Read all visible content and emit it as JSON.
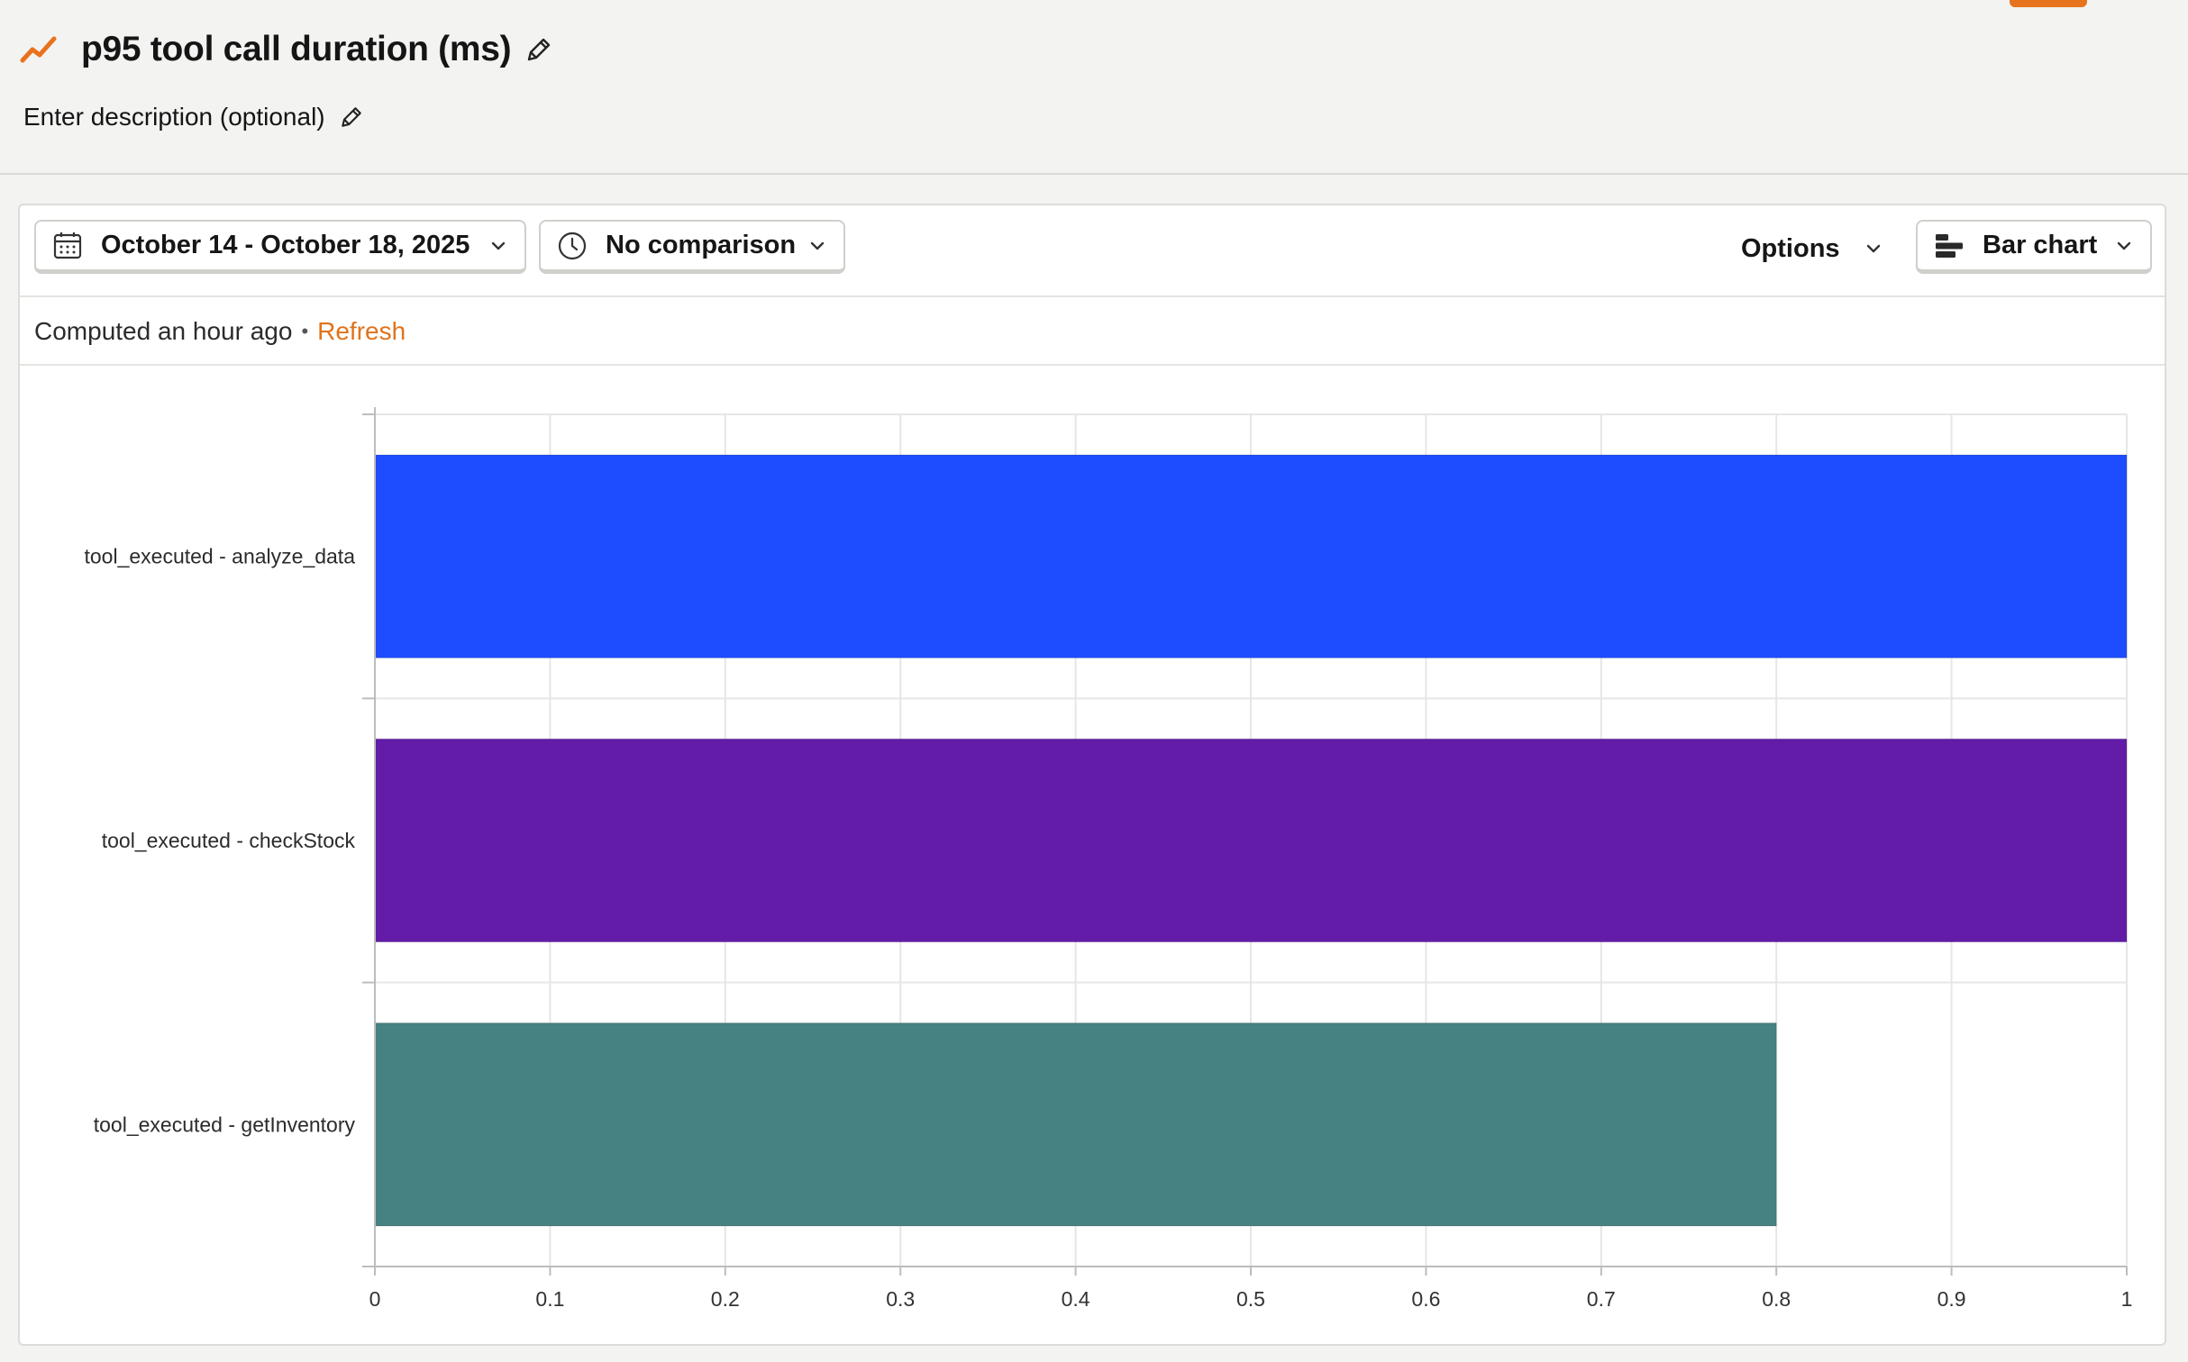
{
  "header": {
    "title": "p95 tool call duration (ms)",
    "description": "Enter description (optional)",
    "accent_color": "#e8731f",
    "title_icon": "trend-line-icon",
    "edit_icon": "pencil-icon"
  },
  "toolbar": {
    "date_range": "October 14 - October 18, 2025",
    "date_icon": "calendar-icon",
    "comparison": "No comparison",
    "comparison_icon": "clock-icon",
    "options_label": "Options",
    "chart_type": "Bar chart",
    "chart_type_icon": "horizontal-bar-chart-icon"
  },
  "status": {
    "computed": "Computed an hour ago",
    "separator": "•",
    "refresh": "Refresh",
    "refresh_color": "#e0731c"
  },
  "chart_data": {
    "type": "bar",
    "orientation": "horizontal",
    "categories": [
      "tool_executed - analyze_data",
      "tool_executed - checkStock",
      "tool_executed - getInventory"
    ],
    "values": [
      1,
      1,
      0.8
    ],
    "colors": [
      "#1e4cff",
      "#621ca8",
      "#468281"
    ],
    "x_ticks": [
      0,
      0.1,
      0.2,
      0.3,
      0.4,
      0.5,
      0.6,
      0.7,
      0.8,
      0.9,
      1
    ],
    "xlim": [
      0,
      1
    ],
    "grid": true
  }
}
